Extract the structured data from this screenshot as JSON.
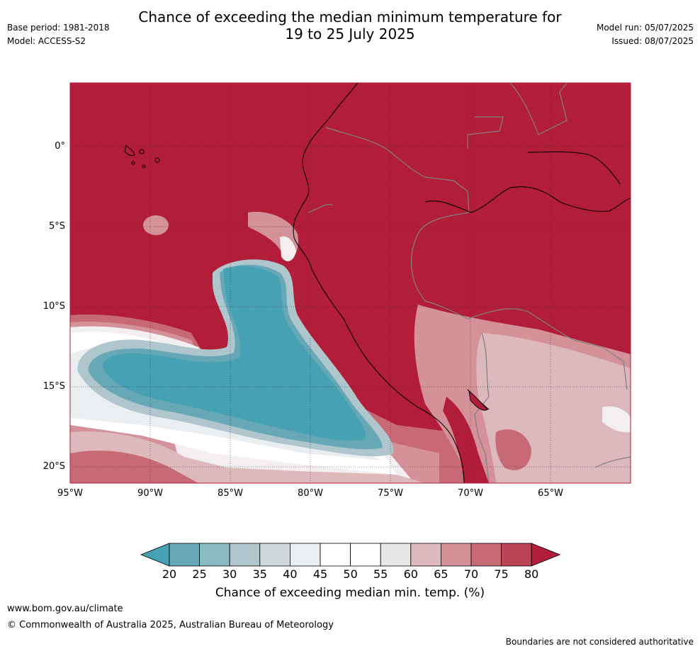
{
  "header": {
    "title_line1": "Chance of exceeding the median minimum temperature for",
    "title_line2": "19 to 25 July 2025",
    "base_period": "Base period: 1981-2018",
    "model": "Model: ACCESS-S2",
    "model_run": "Model run: 05/07/2025",
    "issued": "Issued: 08/07/2025"
  },
  "map": {
    "lon_labels": [
      "95°W",
      "90°W",
      "85°W",
      "80°W",
      "75°W",
      "70°W",
      "65°W"
    ],
    "lat_labels": [
      "0°",
      "5°S",
      "10°S",
      "15°S",
      "20°S"
    ],
    "background_color": "#b21d3a"
  },
  "legend": {
    "label": "Chance of exceeding median min. temp. (%)",
    "ticks": [
      "20",
      "25",
      "30",
      "35",
      "40",
      "45",
      "50",
      "55",
      "60",
      "65",
      "70",
      "75",
      "80"
    ],
    "colors": [
      "#46a1b3",
      "#66a8b6",
      "#8ab8c3",
      "#aec6cc",
      "#cfd8da",
      "#eaeef0",
      "#ffffff",
      "#ffffff",
      "#e9e6e7",
      "#ddb8bd",
      "#d4919a",
      "#c86a76",
      "#bc4555",
      "#b21d3a"
    ]
  },
  "footer": {
    "url": "www.bom.gov.au/climate",
    "copyright": "© Commonwealth of Australia 2025, Australian Bureau of Meteorology",
    "note": "Boundaries are not considered authoritative"
  }
}
